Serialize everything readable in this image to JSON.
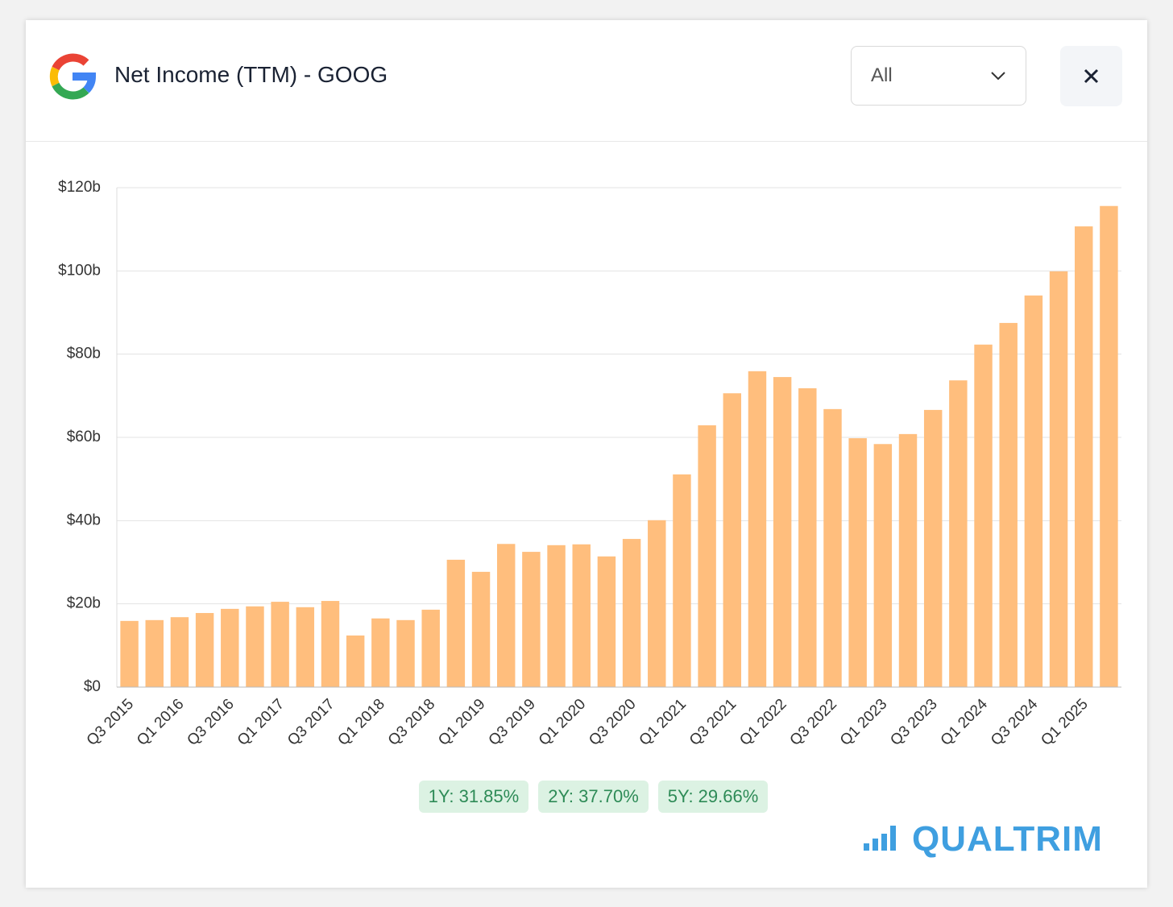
{
  "header": {
    "title": "Net Income (TTM) - GOOG",
    "range_select": "All"
  },
  "chart_data": {
    "type": "bar",
    "categories": [
      "Q3 2015",
      null,
      "Q1 2016",
      null,
      "Q3 2016",
      null,
      "Q1 2017",
      null,
      "Q3 2017",
      null,
      "Q1 2018",
      null,
      "Q3 2018",
      null,
      "Q1 2019",
      null,
      "Q3 2019",
      null,
      "Q1 2020",
      null,
      "Q3 2020",
      null,
      "Q1 2021",
      null,
      "Q3 2021",
      null,
      "Q1 2022",
      null,
      "Q3 2022",
      null,
      "Q1 2023",
      null,
      "Q3 2023",
      null,
      "Q1 2024",
      null,
      "Q3 2024",
      null,
      "Q1 2025",
      null
    ],
    "values": [
      15.9,
      16.1,
      16.8,
      17.8,
      18.8,
      19.4,
      20.5,
      19.2,
      20.7,
      12.4,
      16.5,
      16.1,
      18.6,
      30.6,
      27.7,
      34.4,
      32.5,
      34.1,
      34.3,
      31.4,
      35.6,
      40.1,
      51.1,
      62.9,
      70.6,
      75.9,
      74.5,
      71.8,
      66.8,
      59.8,
      58.4,
      60.8,
      66.6,
      73.7,
      82.3,
      87.5,
      94.1,
      99.9,
      110.7,
      115.6
    ],
    "color": "#ffbe7d",
    "ylim": [
      0,
      120
    ],
    "yticks": [
      {
        "value": 0,
        "label": "$0"
      },
      {
        "value": 20,
        "label": "$20b"
      },
      {
        "value": 40,
        "label": "$40b"
      },
      {
        "value": 60,
        "label": "$60b"
      },
      {
        "value": 80,
        "label": "$80b"
      },
      {
        "value": 100,
        "label": "$100b"
      },
      {
        "value": 120,
        "label": "$120b"
      }
    ],
    "grid": true
  },
  "growth_badges": [
    "1Y: 31.85%",
    "2Y: 37.70%",
    "5Y: 29.66%"
  ],
  "brand": "QUALTRIM"
}
